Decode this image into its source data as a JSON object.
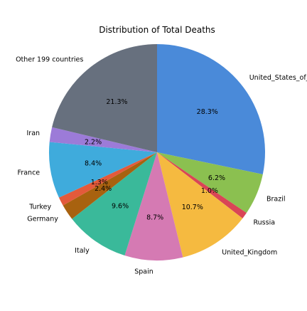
{
  "chart_data": {
    "type": "pie",
    "title": "Distribution of Total Deaths",
    "start_angle_deg": 90,
    "direction": "clockwise",
    "slices": [
      {
        "label": "United_States_of_America",
        "value": 28.3,
        "pct_text": "28.3%",
        "color": "#4a8ad9"
      },
      {
        "label": "Brazil",
        "value": 6.2,
        "pct_text": "6.2%",
        "color": "#8bc050"
      },
      {
        "label": "Russia",
        "value": 1.0,
        "pct_text": "1.0%",
        "color": "#d94556"
      },
      {
        "label": "United_Kingdom",
        "value": 10.7,
        "pct_text": "10.7%",
        "color": "#f5ba40"
      },
      {
        "label": "Spain",
        "value": 8.7,
        "pct_text": "8.7%",
        "color": "#d57ab3"
      },
      {
        "label": "Italy",
        "value": 9.6,
        "pct_text": "9.6%",
        "color": "#3ab99a"
      },
      {
        "label": "Germany",
        "value": 2.4,
        "pct_text": "2.4%",
        "color": "#a8620f"
      },
      {
        "label": "Turkey",
        "value": 1.3,
        "pct_text": "1.3%",
        "color": "#e35a3b"
      },
      {
        "label": "France",
        "value": 8.4,
        "pct_text": "8.4%",
        "color": "#3fabdc"
      },
      {
        "label": "Iran",
        "value": 2.2,
        "pct_text": "2.2%",
        "color": "#9c7bd8"
      },
      {
        "label": "Other 199 countries",
        "value": 21.3,
        "pct_text": "21.3%",
        "color": "#67707e"
      }
    ]
  }
}
